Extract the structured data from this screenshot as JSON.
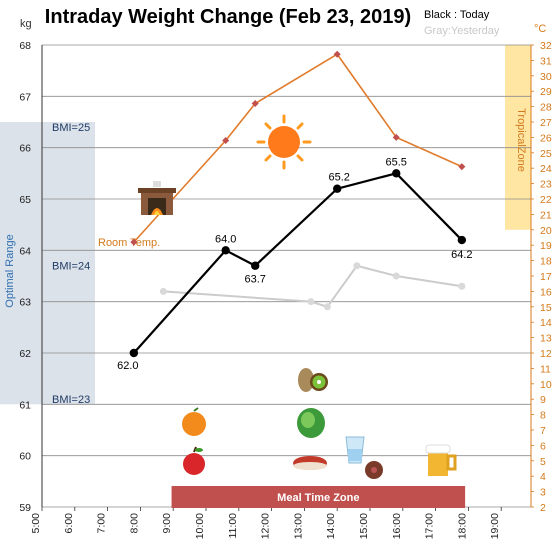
{
  "chart_data": {
    "type": "line",
    "title": "Intraday Weight Change (Feb 23, 2019)",
    "legend": {
      "today": "Black : Today",
      "yesterday": "Gray:Yesterday"
    },
    "y_left_unit": "kg",
    "y_right_unit": "°C",
    "ylim": [
      59,
      68
    ],
    "y2lim": [
      2,
      32
    ],
    "xlim": [
      5,
      19.5
    ],
    "x_ticks": [
      "5:00",
      "6:00",
      "7:00",
      "8:00",
      "9:00",
      "10:00",
      "11:00",
      "12:00",
      "13:00",
      "14:00",
      "15:00",
      "16:00",
      "17:00",
      "18:00",
      "19:00"
    ],
    "y_ticks": [
      "59",
      "60",
      "61",
      "62",
      "63",
      "64",
      "65",
      "66",
      "67",
      "68"
    ],
    "y2_ticks": [
      "2",
      "3",
      "4",
      "5",
      "6",
      "7",
      "8",
      "9",
      "10",
      "11",
      "12",
      "13",
      "14",
      "15",
      "16",
      "17",
      "18",
      "19",
      "20",
      "21",
      "22",
      "23",
      "24",
      "25",
      "26",
      "27",
      "28",
      "29",
      "30",
      "31",
      "32"
    ],
    "series": [
      {
        "name": "Today",
        "color": "#000000",
        "x": [
          7.8,
          10.6,
          11.5,
          14.0,
          15.8,
          17.8
        ],
        "y": [
          62.0,
          64.0,
          63.7,
          65.2,
          65.5,
          64.2
        ],
        "labels": [
          "62.0",
          "64.0",
          "63.7",
          "65.2",
          "65.5",
          "64.2"
        ]
      },
      {
        "name": "Yesterday",
        "color": "#cccccc",
        "x": [
          8.7,
          13.2,
          13.7,
          14.6,
          15.8,
          17.8
        ],
        "y": [
          63.2,
          63.0,
          62.9,
          63.7,
          63.5,
          63.3
        ]
      },
      {
        "name": "Room Temp.",
        "color": "#e07b2c",
        "axis": "right",
        "x": [
          7.8,
          10.6,
          11.5,
          14.0,
          15.8,
          17.8
        ],
        "y": [
          19.2,
          25.8,
          28.2,
          31.4,
          26.0,
          24.1
        ]
      }
    ],
    "annotations": {
      "optimal_range": "Optimal Range",
      "optimal_span": [
        61.0,
        66.5
      ],
      "bmi_labels": [
        "BMI=25",
        "BMI=24",
        "BMI=23"
      ],
      "bmi_values": [
        66.4,
        63.7,
        61.1
      ],
      "tropical_zone": "TropicalZone",
      "tropical_span": [
        20,
        32
      ],
      "room_temp_label": "Room Temp.",
      "meal_time_zone": "Meal Time Zone",
      "meal_span": [
        8.95,
        17.9
      ]
    },
    "icons": [
      "fireplace-icon",
      "sun-icon",
      "orange-icon",
      "apple-icon",
      "potato-icon",
      "kiwi-icon",
      "lettuce-icon",
      "steak-icon",
      "water-glass-icon",
      "sausage-icon",
      "beer-icon"
    ]
  }
}
